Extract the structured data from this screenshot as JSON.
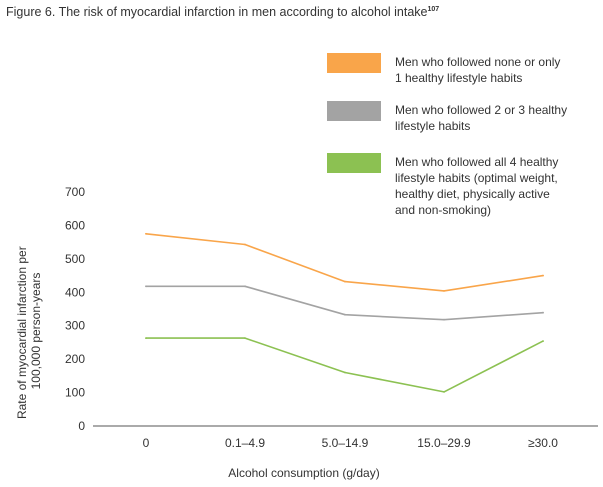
{
  "figure": {
    "title": "Figure 6. The risk of myocardial infarction in men according to alcohol intake",
    "superscript": "107"
  },
  "chart_data": {
    "type": "line",
    "title": "Figure 6. The risk of myocardial infarction in men according to alcohol intake",
    "xlabel": "Alcohol consumption (g/day)",
    "ylabel_lines": [
      "Rate of myocardial infarction per",
      "100,000 person-years"
    ],
    "ylabel": "Rate of myocardial infarction per 100,000 person-years",
    "categories": [
      "0",
      "0.1–4.9",
      "5.0–14.9",
      "15.0–29.9",
      "≥30.0"
    ],
    "ylim": [
      0,
      700
    ],
    "yticks": [
      "0",
      "100",
      "200",
      "300",
      "400",
      "500",
      "600",
      "700"
    ],
    "grid": false,
    "legend_position": "top-right",
    "series": [
      {
        "name": "Men who followed none or only 1 healthy lifestyle habits",
        "legend_lines": [
          "Men who followed none or only",
          "1 healthy lifestyle habits"
        ],
        "color": "#f9a54a",
        "values": [
          575,
          543,
          432,
          404,
          450
        ]
      },
      {
        "name": "Men who followed 2 or 3 healthy lifestyle habits",
        "legend_lines": [
          "Men who followed 2 or 3 healthy",
          "lifestyle habits"
        ],
        "color": "#a3a3a3",
        "values": [
          418,
          418,
          333,
          318,
          339
        ]
      },
      {
        "name": "Men who followed all 4 healthy lifestyle habits (optimal weight, healthy diet, physically active and non-smoking)",
        "legend_lines": [
          "Men who followed all 4 healthy",
          "lifestyle habits (optimal weight,",
          "healthy diet, physically active",
          "and non-smoking)"
        ],
        "color": "#8cc152",
        "values": [
          263,
          263,
          160,
          102,
          254
        ]
      }
    ]
  }
}
